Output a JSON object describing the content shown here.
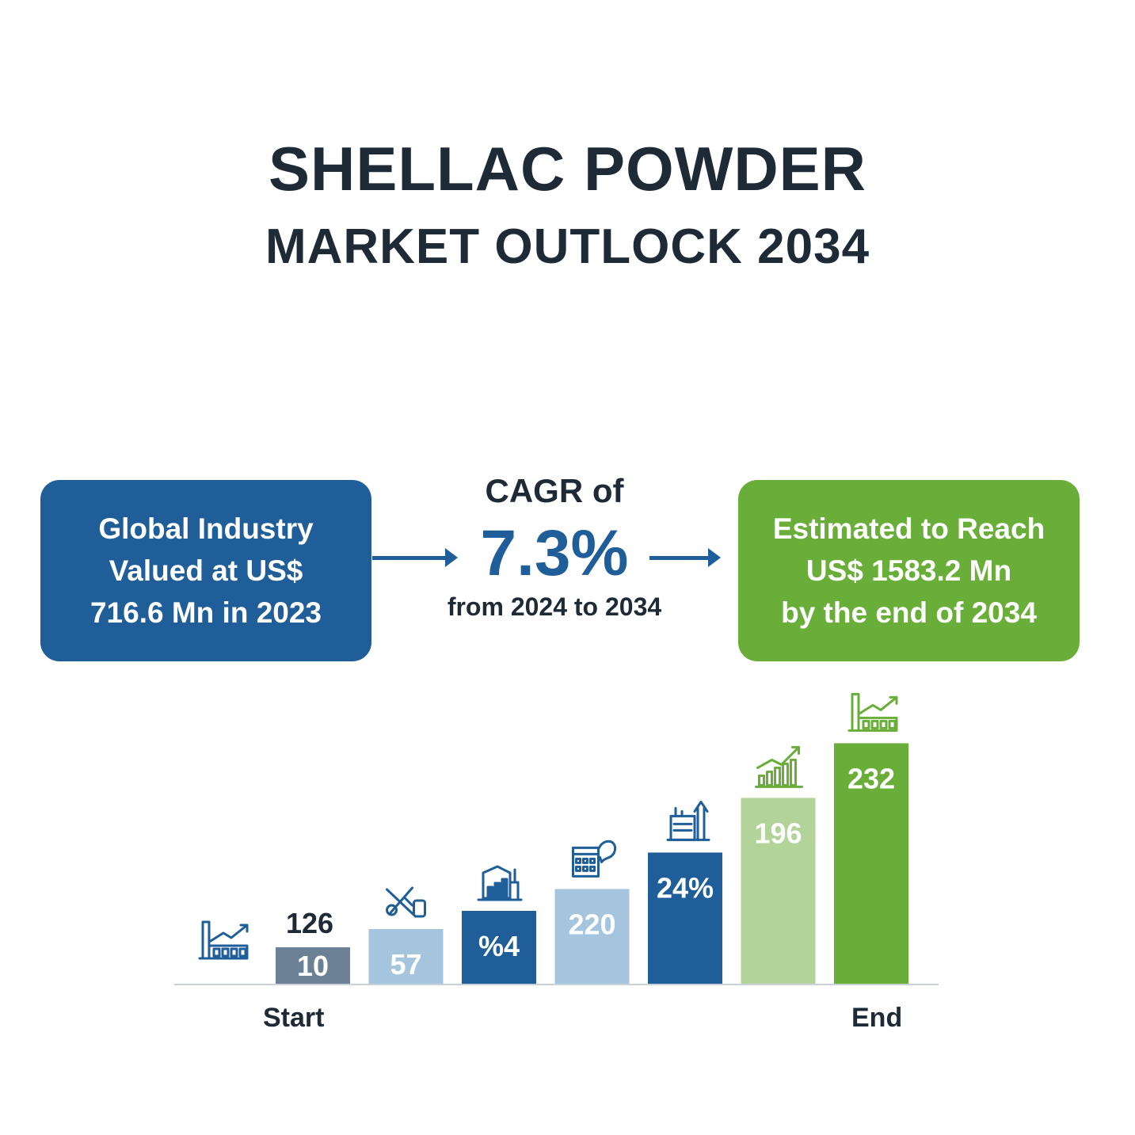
{
  "header": {
    "title": "SHELLAC POWDER",
    "subtitle": "MARKET OUTLOCK 2034"
  },
  "left_box": {
    "line1": "Global Industry",
    "line2": "Valued at US$",
    "line3": "716.6 Mn in 2023"
  },
  "cagr": {
    "label": "CAGR of",
    "value": "7.3%",
    "range": "from 2024 to 2034"
  },
  "right_box": {
    "line1": "Estimated to Reach",
    "line2": "US$ 1583.2 Mn",
    "line3": "by the end of 2034"
  },
  "colors": {
    "blue": "#1f5e98",
    "light_blue": "#a5c4de",
    "slate": "#6c8196",
    "green": "#6aae3a",
    "light_green": "#b2d39a"
  },
  "chart_data": {
    "type": "bar",
    "axis_start_label": "Start",
    "axis_end_label": "End",
    "grid": false,
    "legend": "none",
    "bars": [
      {
        "label": "10",
        "above_label": "126",
        "level": 10,
        "color": "#6c8196",
        "icon": ""
      },
      {
        "label": "57",
        "level": 15,
        "color": "#a5c4de",
        "icon": "tools-icon"
      },
      {
        "label": "%4",
        "level": 20,
        "color": "#1f5e98",
        "icon": "factory-chart-icon"
      },
      {
        "label": "220",
        "level": 26,
        "color": "#a5c4de",
        "icon": "building-chat-icon"
      },
      {
        "label": "24%",
        "level": 36,
        "color": "#1f5e98",
        "icon": "refinery-icon"
      },
      {
        "label": "196",
        "level": 51,
        "color": "#b2d39a",
        "icon": "growth-chart-icon"
      },
      {
        "label": "232",
        "level": 66,
        "color": "#6aae3a",
        "icon": "factory-growth-icon"
      }
    ],
    "leading_icon": "factory-growth-icon"
  }
}
